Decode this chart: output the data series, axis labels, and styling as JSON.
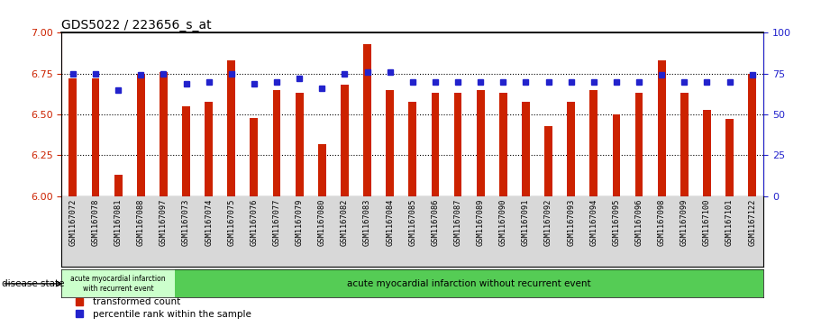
{
  "title": "GDS5022 / 223656_s_at",
  "samples": [
    "GSM1167072",
    "GSM1167078",
    "GSM1167081",
    "GSM1167088",
    "GSM1167097",
    "GSM1167073",
    "GSM1167074",
    "GSM1167075",
    "GSM1167076",
    "GSM1167077",
    "GSM1167079",
    "GSM1167080",
    "GSM1167082",
    "GSM1167083",
    "GSM1167084",
    "GSM1167085",
    "GSM1167086",
    "GSM1167087",
    "GSM1167089",
    "GSM1167090",
    "GSM1167091",
    "GSM1167092",
    "GSM1167093",
    "GSM1167094",
    "GSM1167095",
    "GSM1167096",
    "GSM1167098",
    "GSM1167099",
    "GSM1167100",
    "GSM1167101",
    "GSM1167122"
  ],
  "bar_values": [
    6.72,
    6.72,
    6.13,
    6.75,
    6.76,
    6.55,
    6.58,
    6.83,
    6.48,
    6.65,
    6.63,
    6.32,
    6.68,
    6.93,
    6.65,
    6.58,
    6.63,
    6.63,
    6.65,
    6.63,
    6.58,
    6.43,
    6.58,
    6.65,
    6.5,
    6.63,
    6.83,
    6.63,
    6.53,
    6.47,
    6.75
  ],
  "blue_values": [
    75,
    75,
    65,
    74,
    75,
    69,
    70,
    75,
    69,
    70,
    72,
    66,
    75,
    76,
    76,
    70,
    70,
    70,
    70,
    70,
    70,
    70,
    70,
    70,
    70,
    70,
    74,
    70,
    70,
    70,
    74
  ],
  "group1_count": 5,
  "group1_label": "acute myocardial infarction\nwith recurrent event",
  "group2_label": "acute myocardial infarction without recurrent event",
  "disease_state_label": "disease state",
  "bar_color": "#cc2200",
  "blue_color": "#2222cc",
  "ylim_left": [
    6.0,
    7.0
  ],
  "ylim_right": [
    0,
    100
  ],
  "yticks_left": [
    6.0,
    6.25,
    6.5,
    6.75,
    7.0
  ],
  "yticks_right": [
    0,
    25,
    50,
    75,
    100
  ],
  "dotted_lines": [
    6.25,
    6.5,
    6.75
  ],
  "legend_red": "transformed count",
  "legend_blue": "percentile rank within the sample",
  "group1_bg": "#ccffcc",
  "group2_bg": "#55cc55",
  "title_fontsize": 10,
  "xtick_bg": "#d8d8d8"
}
